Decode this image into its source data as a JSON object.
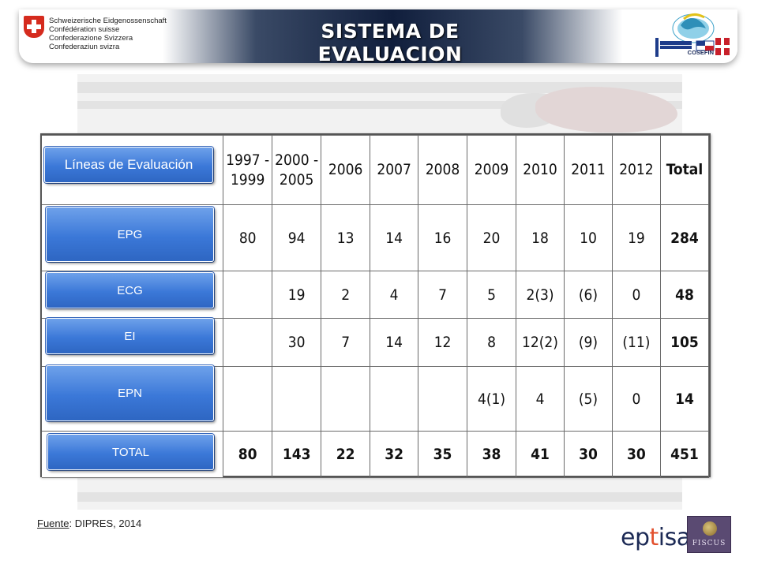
{
  "header": {
    "swiss_lines": [
      "Schweizerische Eidgenossenschaft",
      "Confédération suisse",
      "Confederazione Svizzera",
      "Confederaziun svizra"
    ],
    "title": "SISTEMA DE EVALUACION",
    "cosefin_label": "COSEFIN"
  },
  "table": {
    "row_header_title": "Líneas de Evaluación",
    "columns": [
      "1997 -\n1999",
      "2000 -\n2005",
      "2006",
      "2007",
      "2008",
      "2009",
      "2010",
      "2011",
      "2012",
      "Total"
    ],
    "rows": [
      {
        "label": "EPG",
        "cells": [
          "80",
          "94",
          "13",
          "14",
          "16",
          "20",
          "18",
          "10",
          "19",
          "284"
        ]
      },
      {
        "label": "ECG",
        "cells": [
          "",
          "19",
          "2",
          "4",
          "7",
          "5",
          "2(3)",
          "(6)",
          "0",
          "48"
        ]
      },
      {
        "label": "EI",
        "cells": [
          "",
          "30",
          "7",
          "14",
          "12",
          "8",
          "12(2)",
          "(9)",
          "(11)",
          "105"
        ]
      },
      {
        "label": "EPN",
        "cells": [
          "",
          "",
          "",
          "",
          "",
          "4(1)",
          "4",
          "(5)",
          "0",
          "14"
        ]
      },
      {
        "label": "TOTAL",
        "cells": [
          "80",
          "143",
          "22",
          "32",
          "35",
          "38",
          "41",
          "30",
          "30",
          "451"
        ]
      }
    ]
  },
  "footer": {
    "fuente_label": "Fuente",
    "fuente_text": ": DIPRES, 2014",
    "logo_eptisa_1": "ep",
    "logo_eptisa_2": "t",
    "logo_eptisa_3": "isa",
    "logo_fiscus": "FISCUS"
  },
  "colors": {
    "button_blue": "#3b78d8",
    "banner_navy": "#101e3c",
    "swiss_red": "#d52b1e"
  }
}
